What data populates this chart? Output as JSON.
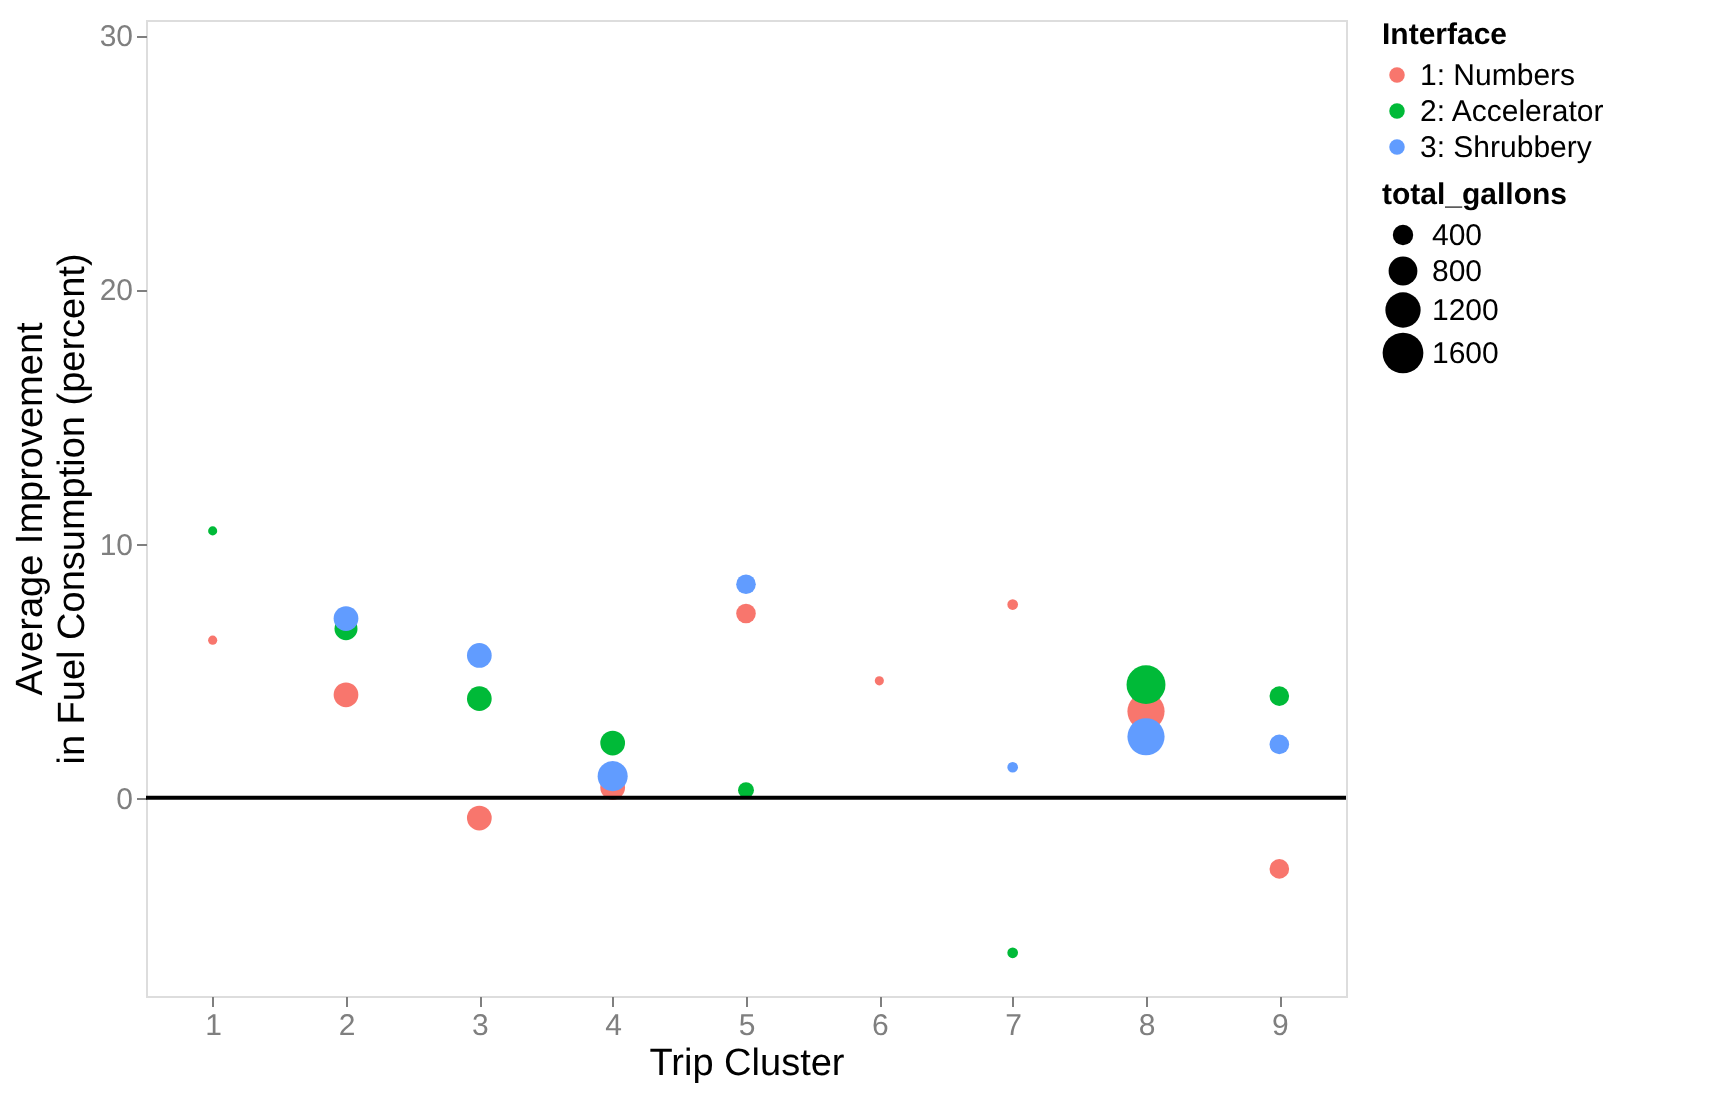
{
  "chart_data": {
    "type": "bubble",
    "xlabel": "Trip Cluster",
    "ylabel": "Average Improvement\nin Fuel Consumption (percent)",
    "categories": [
      "1",
      "2",
      "3",
      "4",
      "5",
      "6",
      "7",
      "8",
      "9"
    ],
    "series": [
      {
        "name": "1: Numbers",
        "color": "#f8766d",
        "values": [
          6.2,
          4.05,
          -0.8,
          0.4,
          7.25,
          4.6,
          7.6,
          3.4,
          -2.8
        ],
        "sizes": [
          80,
          590,
          590,
          590,
          370,
          80,
          110,
          1330,
          370
        ]
      },
      {
        "name": "2: Accelerator",
        "color": "#00ba38",
        "values": [
          10.5,
          6.65,
          3.9,
          2.15,
          0.3,
          null,
          -6.1,
          4.45,
          4.0
        ],
        "sizes": [
          80,
          510,
          590,
          590,
          245,
          null,
          110,
          1460,
          370
        ]
      },
      {
        "name": "3: Shrubbery",
        "color": "#619cff",
        "values": [
          null,
          7.05,
          5.6,
          0.85,
          8.4,
          null,
          1.2,
          2.4,
          2.1
        ],
        "sizes": [
          null,
          590,
          590,
          870,
          370,
          null,
          110,
          1330,
          370
        ]
      }
    ],
    "size_legend": [
      400,
      800,
      1200,
      1600
    ],
    "legend_title": [
      "total_gallons",
      "Interface"
    ],
    "ylim": [
      -7.8,
      30.6
    ],
    "yticks": [
      0,
      10,
      20,
      30
    ],
    "grid": false,
    "legend": "right",
    "marker": "circle",
    "ref_lines": [
      {
        "axis": "y",
        "value": 0,
        "color": "#000000"
      }
    ]
  }
}
